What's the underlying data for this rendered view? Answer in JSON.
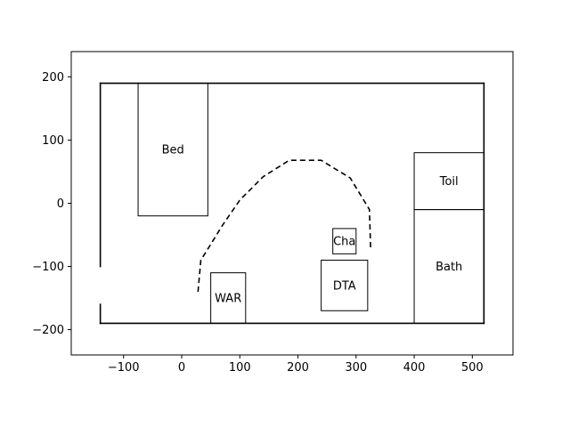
{
  "chart_data": {
    "type": "floorplan",
    "xlim": [
      -190,
      570
    ],
    "ylim": [
      -240,
      240
    ],
    "x_ticks": [
      {
        "value": -100,
        "label": "−100"
      },
      {
        "value": 0,
        "label": "0"
      },
      {
        "value": 100,
        "label": "100"
      },
      {
        "value": 200,
        "label": "200"
      },
      {
        "value": 300,
        "label": "300"
      },
      {
        "value": 400,
        "label": "400"
      },
      {
        "value": 500,
        "label": "500"
      }
    ],
    "y_ticks": [
      {
        "value": -200,
        "label": "−200"
      },
      {
        "value": -100,
        "label": "−100"
      },
      {
        "value": 0,
        "label": "0"
      },
      {
        "value": 100,
        "label": "100"
      },
      {
        "value": 200,
        "label": "200"
      }
    ],
    "walls": [
      {
        "from": [
          -140,
          190
        ],
        "to": [
          520,
          190
        ]
      },
      {
        "from": [
          520,
          190
        ],
        "to": [
          520,
          -190
        ]
      },
      {
        "from": [
          520,
          -190
        ],
        "to": [
          -140,
          -190
        ]
      },
      {
        "from": [
          -140,
          -190
        ],
        "to": [
          -140,
          -160
        ]
      },
      {
        "from": [
          -140,
          -100
        ],
        "to": [
          -140,
          190
        ]
      }
    ],
    "rooms": [
      {
        "name": "Bed",
        "x0": -75,
        "y0": -20,
        "x1": 45,
        "y1": 190
      },
      {
        "name": "WAR",
        "x0": 50,
        "y0": -190,
        "x1": 110,
        "y1": -110
      },
      {
        "name": "DTA",
        "x0": 240,
        "y0": -170,
        "x1": 320,
        "y1": -90
      },
      {
        "name": "Cha",
        "x0": 260,
        "y0": -80,
        "x1": 300,
        "y1": -40
      },
      {
        "name": "Toil",
        "x0": 400,
        "y0": -10,
        "x1": 520,
        "y1": 80
      },
      {
        "name": "Bath",
        "x0": 400,
        "y0": -190,
        "x1": 520,
        "y1": -10
      }
    ],
    "path": [
      [
        28,
        -140
      ],
      [
        33,
        -90
      ],
      [
        50,
        -65
      ],
      [
        70,
        -35
      ],
      [
        100,
        5
      ],
      [
        140,
        42
      ],
      [
        185,
        68
      ],
      [
        240,
        68
      ],
      [
        290,
        40
      ],
      [
        323,
        -10
      ],
      [
        325,
        -70
      ]
    ]
  }
}
